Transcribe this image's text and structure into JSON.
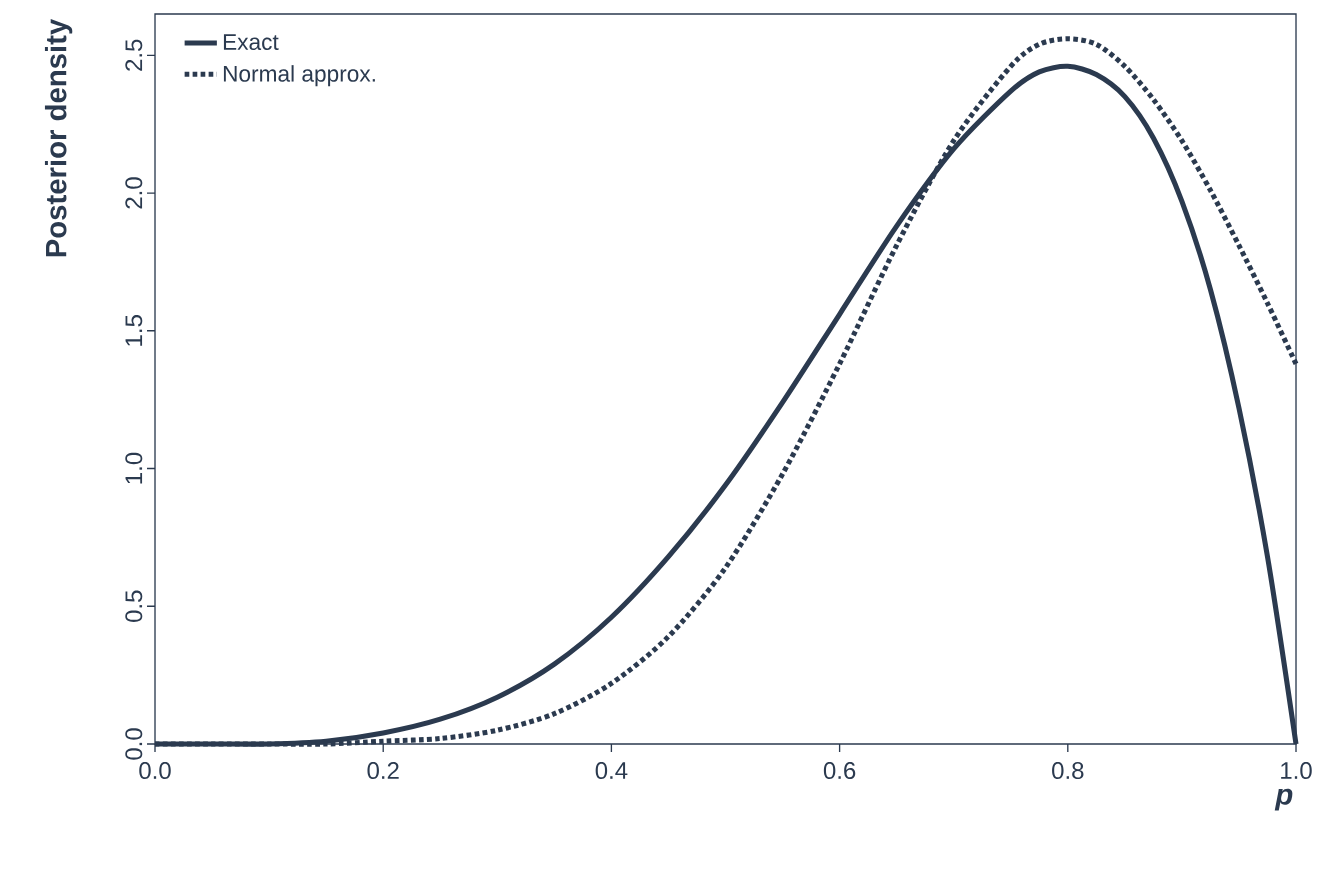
{
  "chart_data": {
    "type": "line",
    "xlabel": "p",
    "ylabel": "Posterior density",
    "x": [
      0,
      0.05,
      0.1,
      0.15,
      0.2,
      0.25,
      0.3,
      0.35,
      0.4,
      0.45,
      0.5,
      0.55,
      0.6,
      0.65,
      0.7,
      0.75,
      0.775,
      0.8,
      0.825,
      0.85,
      0.875,
      0.9,
      0.925,
      0.95,
      0.975,
      1.0
    ],
    "series": [
      {
        "name": "Exact",
        "color": "#2b3a4f",
        "line_style": "solid",
        "values": [
          0,
          0.0,
          0.0,
          0.01,
          0.04,
          0.09,
          0.17,
          0.29,
          0.46,
          0.68,
          0.94,
          1.24,
          1.56,
          1.88,
          2.16,
          2.37,
          2.44,
          2.46,
          2.43,
          2.35,
          2.2,
          1.97,
          1.65,
          1.22,
          0.68,
          0
        ]
      },
      {
        "name": "Normal approx.",
        "color": "#2b3a4f",
        "line_style": "dotted",
        "values": [
          0.0,
          0.0,
          0.0,
          0.0,
          0.01,
          0.02,
          0.05,
          0.11,
          0.22,
          0.39,
          0.64,
          0.98,
          1.38,
          1.81,
          2.19,
          2.46,
          2.54,
          2.56,
          2.54,
          2.46,
          2.34,
          2.19,
          2.01,
          1.81,
          1.6,
          1.38
        ]
      }
    ],
    "xlim": [
      0,
      1.0
    ],
    "ylim": [
      0,
      2.65
    ],
    "xticks": [
      {
        "value": 0,
        "label": "0.0"
      },
      0.2,
      0.4,
      0.6,
      0.8,
      {
        "value": 1,
        "label": "1.0"
      }
    ],
    "yticks": [
      {
        "value": 0,
        "label": "0.0"
      },
      0.5,
      {
        "value": 1,
        "label": "1.0"
      },
      1.5,
      {
        "value": 2,
        "label": "2.0"
      },
      2.5
    ],
    "grid": false,
    "legend": "top left",
    "marker": "none"
  }
}
